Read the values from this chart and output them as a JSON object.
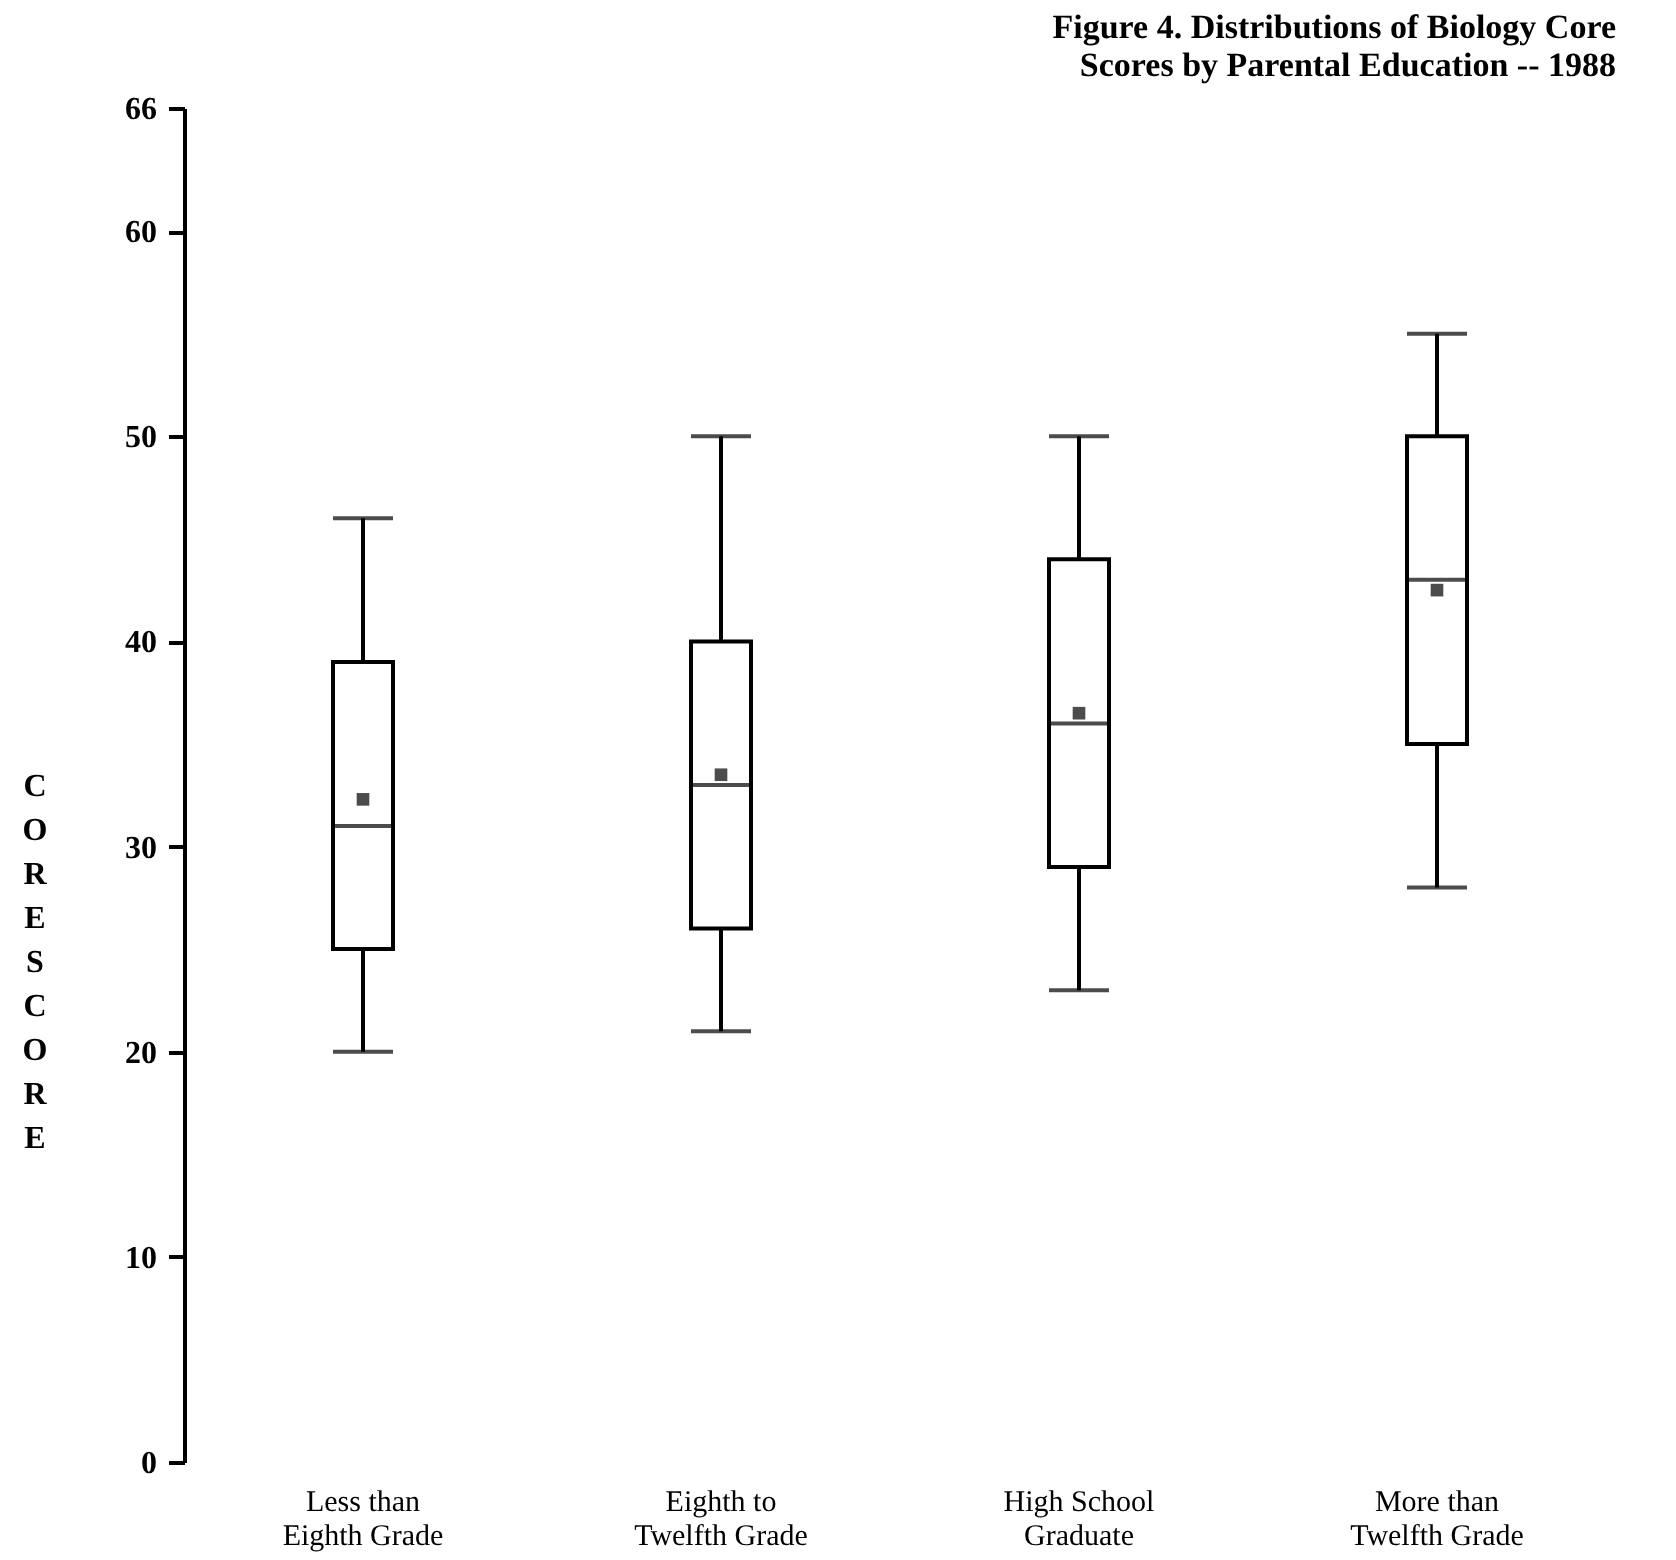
{
  "chart_data": {
    "type": "box",
    "title": "Figure 4. Distributions of Biology Core\nScores by Parental Education -- 1988",
    "ylabel": "CORE SCORE",
    "categories": [
      "Less than\nEighth Grade",
      "Eighth to\nTwelfth Grade",
      "High School\nGraduate",
      "More than\nTwelfth Grade"
    ],
    "boxes": [
      {
        "low": 20,
        "q1": 25,
        "median": 31,
        "q3": 39,
        "high": 46,
        "mean": 32.3
      },
      {
        "low": 21,
        "q1": 26,
        "median": 33,
        "q3": 40,
        "high": 50,
        "mean": 33.5
      },
      {
        "low": 23,
        "q1": 29,
        "median": 36,
        "q3": 44,
        "high": 50,
        "mean": 36.5
      },
      {
        "low": 28,
        "q1": 35,
        "median": 43,
        "q3": 50,
        "high": 55,
        "mean": 42.5
      }
    ],
    "ylim": [
      0,
      66
    ],
    "yticks": [
      0,
      10,
      20,
      30,
      40,
      50,
      60,
      66
    ],
    "grid": false,
    "marker": "square"
  }
}
